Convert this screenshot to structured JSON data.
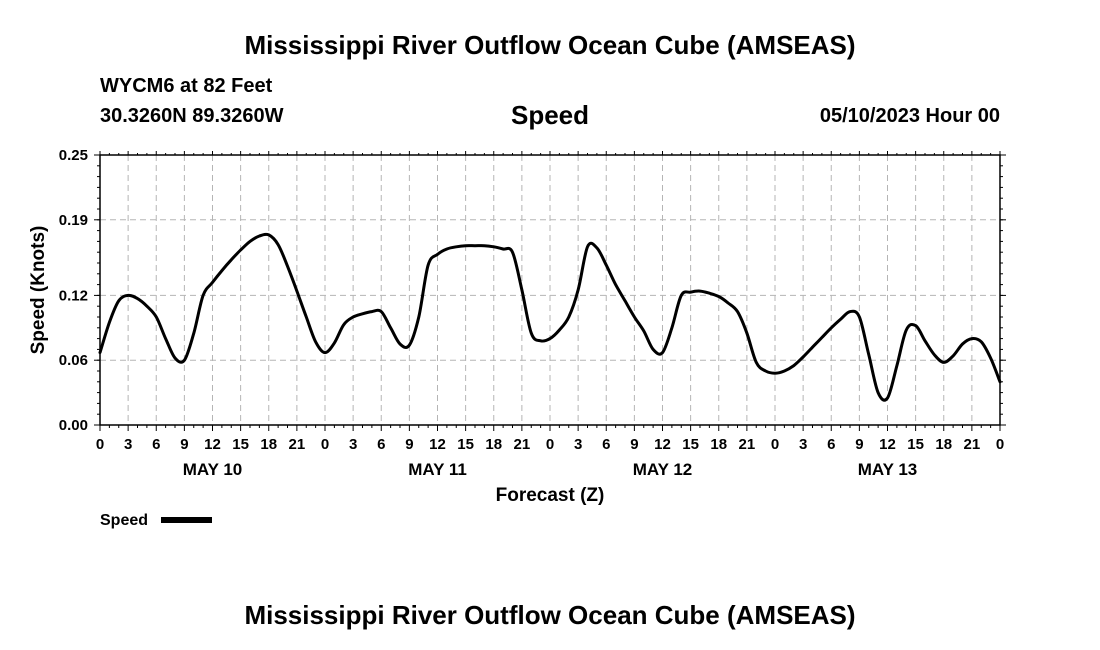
{
  "header": {
    "title": "Mississippi River Outflow Ocean Cube (AMSEAS)",
    "station": "WYCM6 at 82 Feet",
    "location": "30.3260N  89.3260W",
    "variable": "Speed",
    "datetime": "05/10/2023 Hour 00"
  },
  "footer": {
    "title": "Mississippi River Outflow Ocean Cube (AMSEAS)"
  },
  "chart_data": {
    "type": "line",
    "title": "Speed",
    "xlabel": "Forecast (Z)",
    "ylabel": "Speed (Knots)",
    "ylim": [
      0,
      0.25
    ],
    "xlim": [
      0,
      96
    ],
    "yticks": [
      0.0,
      0.06,
      0.12,
      0.19,
      0.25
    ],
    "ytick_labels": [
      "0.00",
      "0.06",
      "0.12",
      "0.19",
      "0.25"
    ],
    "xtick_labels": [
      "0",
      "3",
      "6",
      "9",
      "12",
      "15",
      "18",
      "21",
      "0",
      "3",
      "6",
      "9",
      "12",
      "15",
      "18",
      "21",
      "0",
      "3",
      "6",
      "9",
      "12",
      "15",
      "18",
      "21",
      "0",
      "3",
      "6",
      "9",
      "12",
      "15",
      "18",
      "21",
      "0"
    ],
    "day_labels": [
      {
        "label": "MAY 10",
        "hour": 12
      },
      {
        "label": "MAY 11",
        "hour": 36
      },
      {
        "label": "MAY 12",
        "hour": 60
      },
      {
        "label": "MAY 13",
        "hour": 84
      }
    ],
    "grid": true,
    "legend": {
      "label": "Speed",
      "position": "bottom-left"
    },
    "series": [
      {
        "name": "Speed",
        "x": [
          0,
          1,
          2,
          3,
          4,
          5,
          6,
          7,
          8,
          9,
          10,
          11,
          12,
          13,
          14,
          15,
          16,
          17,
          18,
          19,
          20,
          21,
          22,
          23,
          24,
          25,
          26,
          27,
          28,
          29,
          30,
          31,
          32,
          33,
          34,
          35,
          36,
          37,
          38,
          39,
          40,
          41,
          42,
          43,
          44,
          45,
          46,
          47,
          48,
          49,
          50,
          51,
          52,
          53,
          54,
          55,
          56,
          57,
          58,
          59,
          60,
          61,
          62,
          63,
          64,
          65,
          66,
          67,
          68,
          69,
          70,
          71,
          72,
          73,
          74,
          75,
          76,
          77,
          78,
          79,
          80,
          81,
          82,
          83,
          84,
          85,
          86,
          87,
          88,
          89,
          90,
          91,
          92,
          93,
          94,
          95,
          96
        ],
        "values": [
          0.067,
          0.095,
          0.115,
          0.12,
          0.117,
          0.11,
          0.1,
          0.08,
          0.062,
          0.06,
          0.085,
          0.12,
          0.132,
          0.143,
          0.153,
          0.162,
          0.17,
          0.175,
          0.176,
          0.167,
          0.147,
          0.124,
          0.1,
          0.077,
          0.067,
          0.076,
          0.093,
          0.1,
          0.103,
          0.105,
          0.105,
          0.09,
          0.075,
          0.074,
          0.1,
          0.148,
          0.158,
          0.163,
          0.165,
          0.166,
          0.166,
          0.166,
          0.165,
          0.163,
          0.16,
          0.125,
          0.085,
          0.078,
          0.08,
          0.088,
          0.1,
          0.125,
          0.165,
          0.164,
          0.148,
          0.13,
          0.115,
          0.1,
          0.087,
          0.07,
          0.067,
          0.09,
          0.12,
          0.123,
          0.124,
          0.122,
          0.119,
          0.113,
          0.105,
          0.085,
          0.058,
          0.05,
          0.048,
          0.05,
          0.055,
          0.063,
          0.072,
          0.081,
          0.09,
          0.098,
          0.105,
          0.1,
          0.065,
          0.03,
          0.025,
          0.055,
          0.088,
          0.092,
          0.078,
          0.065,
          0.058,
          0.064,
          0.075,
          0.08,
          0.077,
          0.062,
          0.04
        ]
      }
    ]
  }
}
